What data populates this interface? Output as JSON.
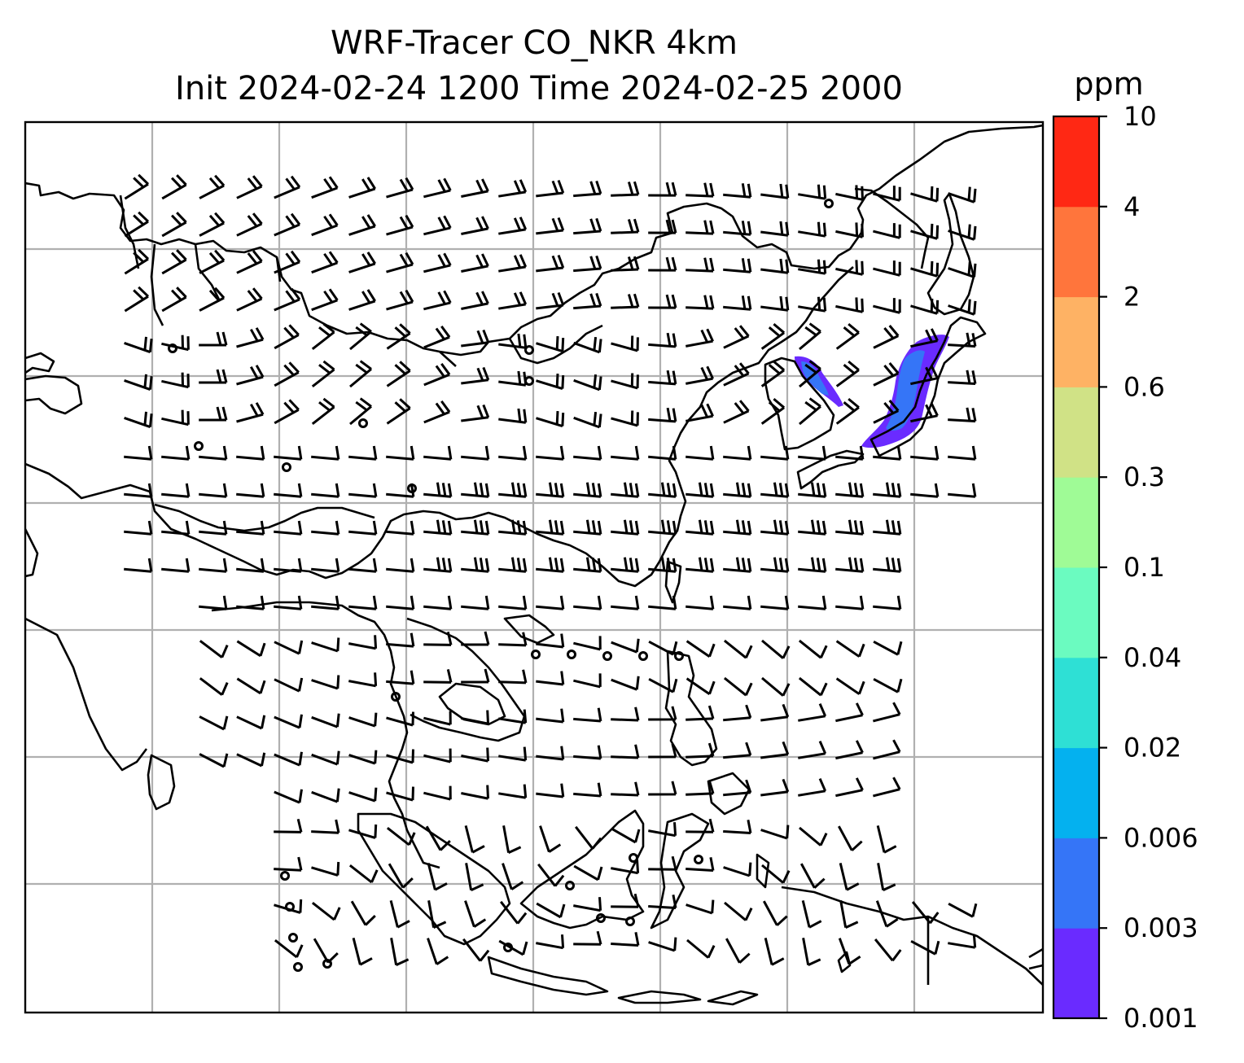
{
  "title": {
    "line1": "WRF-Tracer CO_NKR 4km",
    "line2": "Init 2024-02-24 1200 Time 2024-02-25 2000"
  },
  "colorbar": {
    "unit": "ppm",
    "levels": [
      "0.001",
      "0.003",
      "0.006",
      "0.02",
      "0.04",
      "0.1",
      "0.3",
      "0.6",
      "2",
      "4",
      "10"
    ],
    "colors": [
      "#6a2bff",
      "#3575f7",
      "#04b1ef",
      "#2ee0d5",
      "#6bfbc0",
      "#9ffb96",
      "#d0e286",
      "#feb264",
      "#ff753c",
      "#ff2814"
    ]
  },
  "map": {
    "projection": "lat-lon",
    "gridlines": true,
    "lon_gridlines": 7,
    "lat_gridlines": 6,
    "wind_barbs": true,
    "plume_color": "#6a2bff",
    "plume_color_2": "#3575f7"
  }
}
